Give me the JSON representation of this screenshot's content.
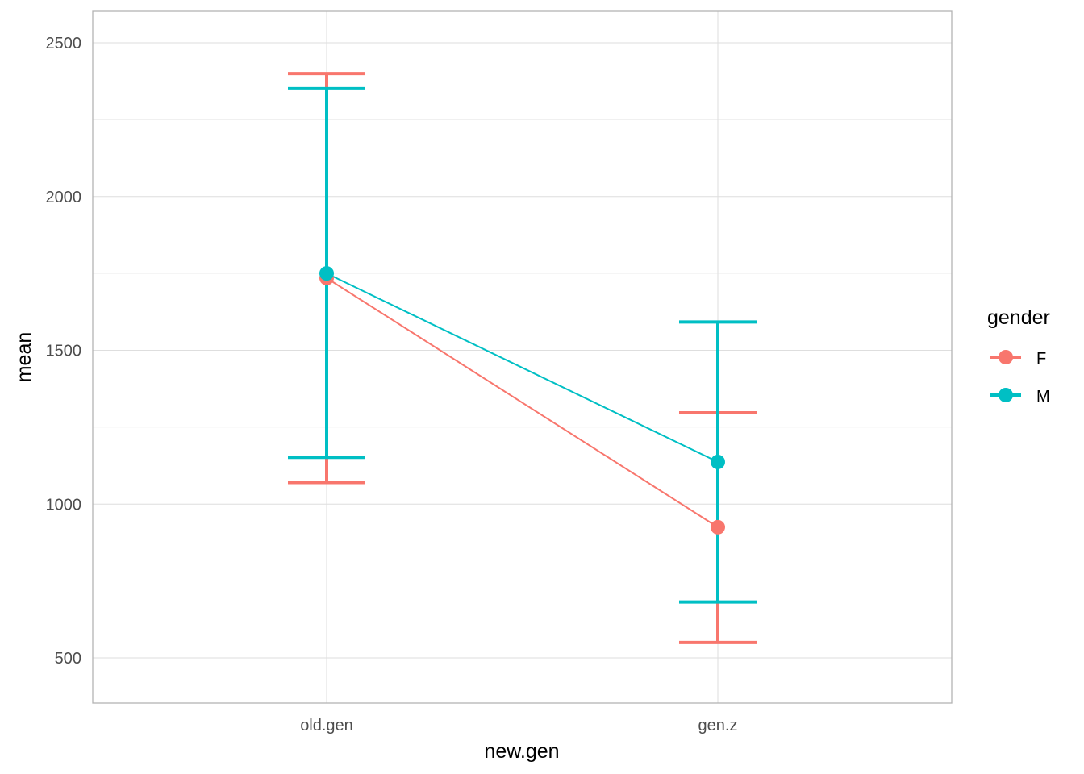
{
  "chart_data": {
    "type": "line",
    "title": "",
    "xlabel": "new.gen",
    "ylabel": "mean",
    "categories": [
      "old.gen",
      "gen.z"
    ],
    "yticks": [
      500,
      1000,
      1500,
      2000,
      2500
    ],
    "ylim": [
      350,
      2600
    ],
    "grid": true,
    "legend": {
      "title": "gender",
      "position": "right"
    },
    "series": [
      {
        "name": "F",
        "color": "#F8766D",
        "values": [
          1735,
          925
        ],
        "lower": [
          1070,
          550
        ],
        "upper": [
          2400,
          1297
        ]
      },
      {
        "name": "M",
        "color": "#00BFC4",
        "values": [
          1750,
          1137
        ],
        "lower": [
          1152,
          682
        ],
        "upper": [
          2351,
          1592
        ]
      }
    ]
  }
}
